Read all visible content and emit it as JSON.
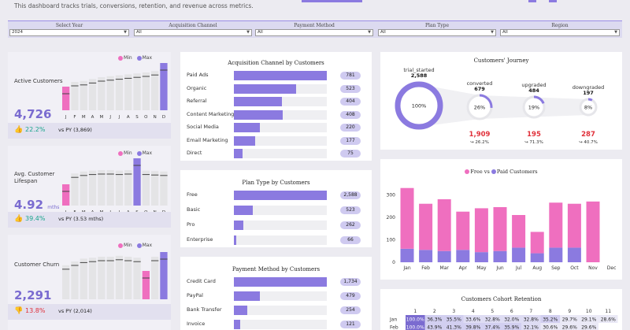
{
  "header": {
    "subtitle": "This dashboard tracks trials, conversions, retention, and revenue across metrics."
  },
  "filters": [
    {
      "label": "Select Year",
      "value": "2024"
    },
    {
      "label": "Acquisition Channel",
      "value": "All"
    },
    {
      "label": "Payment Method",
      "value": "All"
    },
    {
      "label": "Plan Type",
      "value": "All"
    },
    {
      "label": "Region",
      "value": "All"
    }
  ],
  "colors": {
    "accent": "#8b7ae0",
    "pink": "#ef6fbf",
    "red": "#e0303a",
    "green": "#1aa58c"
  },
  "kpis": [
    {
      "title": "Active Customers",
      "value": "4,726",
      "unit": "",
      "delta": "22.2%",
      "direction": "up",
      "vs": "vs PY (3,869)",
      "legend_min": "Min",
      "legend_max": "Max",
      "months": [
        "J",
        "F",
        "M",
        "A",
        "M",
        "J",
        "J",
        "A",
        "S",
        "O",
        "N",
        "D"
      ],
      "values": [
        0.5,
        0.6,
        0.62,
        0.66,
        0.7,
        0.72,
        0.74,
        0.76,
        0.78,
        0.8,
        0.83,
        1.0
      ],
      "min_index": 0,
      "max_index": 11
    },
    {
      "title": "Avg. Customer Lifespan",
      "value": "4.92",
      "unit": "mths",
      "delta": "39.4%",
      "direction": "up",
      "vs": "vs PY (3.53 mths)",
      "legend_min": "Min",
      "legend_max": "Max",
      "months": [
        "J",
        "F",
        "M",
        "A",
        "M",
        "J",
        "J",
        "A",
        "S",
        "O",
        "N",
        "D"
      ],
      "values": [
        0.45,
        0.68,
        0.72,
        0.74,
        0.75,
        0.75,
        0.74,
        0.75,
        1.0,
        0.74,
        0.73,
        0.72
      ],
      "min_index": 0,
      "max_index": 8
    },
    {
      "title": "Customer Churn",
      "value": "2,291",
      "unit": "",
      "delta": "13.8%",
      "direction": "down",
      "vs": "vs PY (2,014)",
      "legend_min": "Min",
      "legend_max": "Max",
      "months": [
        "J",
        "F",
        "M",
        "A",
        "M",
        "J",
        "J",
        "A",
        "S",
        "O",
        "N",
        "D"
      ],
      "values": [
        0.72,
        0.8,
        0.86,
        0.88,
        0.9,
        0.9,
        0.92,
        0.9,
        0.88,
        0.6,
        0.9,
        1.0
      ],
      "min_index": 9,
      "max_index": 11
    }
  ],
  "acquisition": {
    "title": "Acquisition Channel by Customers",
    "max": 781,
    "items": [
      {
        "label": "Paid Ads",
        "value": 781,
        "text": "781"
      },
      {
        "label": "Organic",
        "value": 523,
        "text": "523"
      },
      {
        "label": "Referral",
        "value": 404,
        "text": "404"
      },
      {
        "label": "Content Marketing",
        "value": 408,
        "text": "408"
      },
      {
        "label": "Social Media",
        "value": 220,
        "text": "220"
      },
      {
        "label": "Email Marketing",
        "value": 177,
        "text": "177"
      },
      {
        "label": "Direct",
        "value": 75,
        "text": "75"
      }
    ]
  },
  "plan": {
    "title": "Plan Type by Customers",
    "max": 2588,
    "items": [
      {
        "label": "Free",
        "value": 2588,
        "text": "2,588"
      },
      {
        "label": "Basic",
        "value": 523,
        "text": "523"
      },
      {
        "label": "Pro",
        "value": 262,
        "text": "262"
      },
      {
        "label": "Enterprise",
        "value": 66,
        "text": "66"
      }
    ]
  },
  "payment": {
    "title": "Payment Method by Customers",
    "max": 1734,
    "items": [
      {
        "label": "Credit Card",
        "value": 1734,
        "text": "1,734"
      },
      {
        "label": "PayPal",
        "value": 479,
        "text": "479"
      },
      {
        "label": "Bank Transfer",
        "value": 254,
        "text": "254"
      },
      {
        "label": "Invoice",
        "value": 121,
        "text": "121"
      }
    ]
  },
  "journey": {
    "title": "Customers' Journey",
    "stages": [
      {
        "name": "trial_started",
        "count": "2,588",
        "pct": "100%",
        "fill": 1.0
      },
      {
        "name": "converted",
        "count": "679",
        "pct": "26%",
        "fill": 0.26,
        "drop": "1,909",
        "drop_pct": "↪ 26.2%"
      },
      {
        "name": "upgraded",
        "count": "484",
        "pct": "19%",
        "fill": 0.19,
        "drop": "195",
        "drop_pct": "↪ 71.3%"
      },
      {
        "name": "downgraded",
        "count": "197",
        "pct": "8%",
        "fill": 0.08,
        "drop": "287",
        "drop_pct": "↪ 40.7%"
      }
    ]
  },
  "free_paid": {
    "legend_free": "Free",
    "legend_vs": "vs",
    "legend_paid": "Paid Customers",
    "legend_title_tail": "",
    "chart_data": {
      "type": "bar",
      "categories": [
        "Jan",
        "Feb",
        "Mar",
        "Apr",
        "May",
        "Jun",
        "Jul",
        "Aug",
        "Sep",
        "Oct",
        "Nov",
        "Dec"
      ],
      "series": [
        {
          "name": "Free",
          "values": [
            270,
            205,
            230,
            170,
            195,
            195,
            145,
            95,
            200,
            195,
            270,
            0
          ]
        },
        {
          "name": "Paid Customers",
          "values": [
            60,
            55,
            50,
            55,
            45,
            50,
            65,
            40,
            65,
            65,
            0,
            0
          ]
        }
      ],
      "yticks": [
        0,
        100,
        200,
        300
      ],
      "ylim": [
        0,
        350
      ]
    }
  },
  "cohort": {
    "title": "Customers Cohort Retention",
    "columns": [
      "1",
      "2",
      "3",
      "4",
      "5",
      "6",
      "7",
      "8",
      "9",
      "10",
      "11"
    ],
    "rows": [
      {
        "label": "Jan",
        "cells": [
          "100.0%",
          "36.3%",
          "35.5%",
          "33.6%",
          "32.8%",
          "32.0%",
          "32.8%",
          "35.2%",
          "29.7%",
          "29.1%",
          "28.6%"
        ]
      },
      {
        "label": "Feb",
        "cells": [
          "100.0%",
          "43.9%",
          "41.3%",
          "39.8%",
          "37.4%",
          "35.9%",
          "32.1%",
          "30.6%",
          "29.6%",
          "29.6%",
          ""
        ]
      }
    ]
  }
}
